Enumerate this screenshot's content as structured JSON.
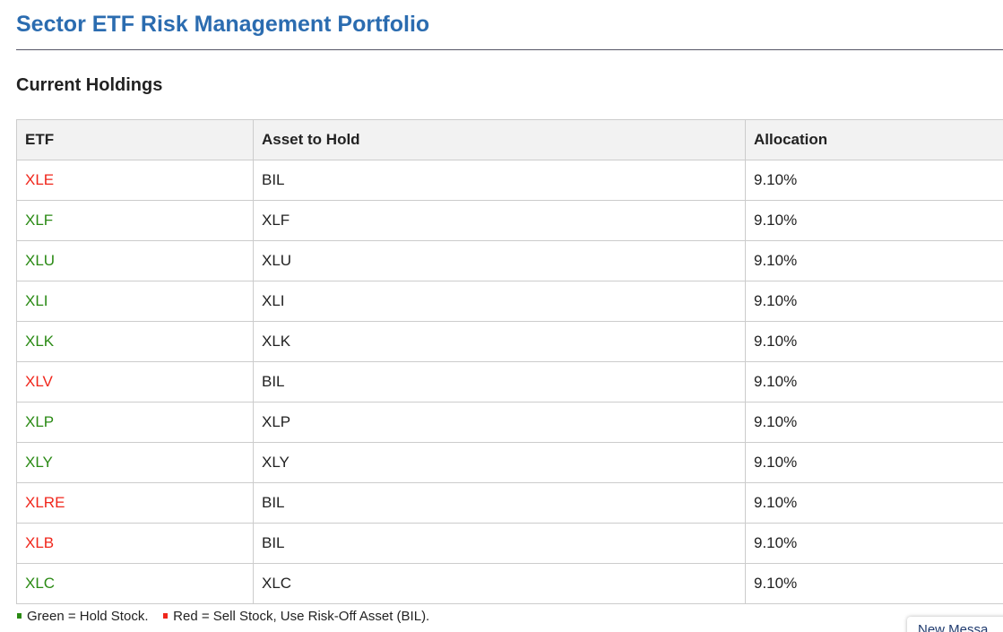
{
  "page": {
    "title": "Sector ETF Risk Management Portfolio",
    "section_title": "Current Holdings"
  },
  "colors": {
    "hold": "#2a8a14",
    "sell": "#f0261b",
    "title": "#2b6cb0"
  },
  "table": {
    "headers": [
      "ETF",
      "Asset to Hold",
      "Allocation"
    ],
    "rows": [
      {
        "etf": "XLE",
        "asset": "BIL",
        "allocation": "9.10%",
        "status": "sell"
      },
      {
        "etf": "XLF",
        "asset": "XLF",
        "allocation": "9.10%",
        "status": "hold"
      },
      {
        "etf": "XLU",
        "asset": "XLU",
        "allocation": "9.10%",
        "status": "hold"
      },
      {
        "etf": "XLI",
        "asset": "XLI",
        "allocation": "9.10%",
        "status": "hold"
      },
      {
        "etf": "XLK",
        "asset": "XLK",
        "allocation": "9.10%",
        "status": "hold"
      },
      {
        "etf": "XLV",
        "asset": "BIL",
        "allocation": "9.10%",
        "status": "sell"
      },
      {
        "etf": "XLP",
        "asset": "XLP",
        "allocation": "9.10%",
        "status": "hold"
      },
      {
        "etf": "XLY",
        "asset": "XLY",
        "allocation": "9.10%",
        "status": "hold"
      },
      {
        "etf": "XLRE",
        "asset": "BIL",
        "allocation": "9.10%",
        "status": "sell"
      },
      {
        "etf": "XLB",
        "asset": "BIL",
        "allocation": "9.10%",
        "status": "sell"
      },
      {
        "etf": "XLC",
        "asset": "XLC",
        "allocation": "9.10%",
        "status": "hold"
      }
    ]
  },
  "legend": {
    "hold": "Green = Hold Stock.",
    "sell": "Red = Sell Stock, Use Risk-Off Asset (BIL)."
  },
  "chat_widget": {
    "label": "New Messa"
  }
}
